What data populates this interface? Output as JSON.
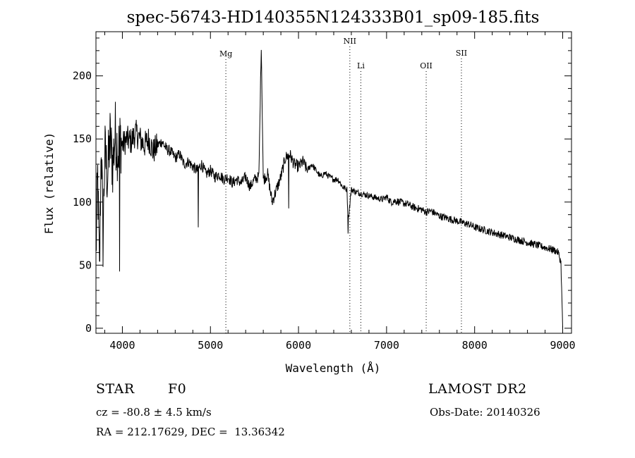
{
  "chart_data": {
    "type": "line",
    "title": "spec-56743-HD140355N124333B01_sp09-185.fits",
    "xlabel": "Wavelength (Å)",
    "ylabel": "Flux (relative)",
    "xlim": [
      3700,
      9100
    ],
    "ylim": [
      -4,
      235
    ],
    "x_ticks": [
      4000,
      5000,
      6000,
      7000,
      8000,
      9000
    ],
    "y_ticks": [
      0,
      50,
      100,
      150,
      200
    ],
    "grid": false,
    "lines": [
      {
        "label": "Mg",
        "wavelength": 5175
      },
      {
        "label": "NII",
        "wavelength": 6583
      },
      {
        "label": "Li",
        "wavelength": 6708
      },
      {
        "label": "OII",
        "wavelength": 7450
      },
      {
        "label": "SII",
        "wavelength": 7850
      }
    ],
    "series": [
      {
        "x": [
          3700,
          3720,
          3740,
          3760,
          3780,
          3800,
          3830,
          3860,
          3890,
          3920,
          3950,
          3980,
          4000,
          4050,
          4100,
          4150,
          4200,
          4250,
          4300,
          4350,
          4400,
          4450,
          4500,
          4550,
          4600,
          4650,
          4700,
          4750,
          4800,
          4850,
          4900,
          4950,
          5000,
          5050,
          5100,
          5150,
          5200,
          5250,
          5300,
          5350,
          5400,
          5450,
          5500,
          5550,
          5577,
          5600,
          5650,
          5700,
          5750,
          5800,
          5850,
          5900,
          5950,
          6000,
          6050,
          6100,
          6150,
          6200,
          6250,
          6300,
          6350,
          6400,
          6450,
          6500,
          6550,
          6563,
          6600,
          6650,
          6700,
          6750,
          6800,
          6850,
          6900,
          6950,
          7000,
          7050,
          7100,
          7150,
          7200,
          7250,
          7300,
          7350,
          7400,
          7450,
          7500,
          7550,
          7600,
          7650,
          7700,
          7750,
          7800,
          7850,
          7900,
          7950,
          8000,
          8050,
          8100,
          8150,
          8200,
          8250,
          8300,
          8350,
          8400,
          8450,
          8500,
          8550,
          8600,
          8650,
          8700,
          8750,
          8800,
          8850,
          8900,
          8950,
          8980,
          9000
        ],
        "y": [
          60,
          120,
          40,
          150,
          70,
          140,
          120,
          150,
          130,
          155,
          140,
          150,
          145,
          150,
          148,
          155,
          150,
          145,
          150,
          140,
          145,
          148,
          142,
          140,
          135,
          138,
          130,
          132,
          128,
          125,
          130,
          122,
          125,
          120,
          122,
          118,
          120,
          115,
          118,
          115,
          120,
          112,
          118,
          120,
          225,
          118,
          122,
          100,
          110,
          120,
          135,
          138,
          130,
          128,
          132,
          125,
          130,
          125,
          120,
          123,
          120,
          118,
          118,
          112,
          110,
          85,
          110,
          108,
          107,
          106,
          105,
          104,
          103,
          102,
          104,
          100,
          101,
          100,
          99,
          98,
          96,
          95,
          94,
          92,
          93,
          91,
          89,
          88,
          87,
          86,
          85,
          84,
          83,
          82,
          80,
          79,
          78,
          77,
          76,
          75,
          74,
          73,
          72,
          71,
          70,
          69,
          68,
          67,
          66,
          65,
          64,
          63,
          62,
          60,
          52,
          0
        ]
      }
    ],
    "absorption": [
      {
        "x": 3970,
        "y": 45
      },
      {
        "x": 4861,
        "y": 80
      },
      {
        "x": 5890,
        "y": 95
      },
      {
        "x": 6563,
        "y": 75
      }
    ]
  },
  "info": {
    "object_type": "STAR",
    "subclass": "F0",
    "survey": "LAMOST DR2",
    "redshift": "cz = -80.8 ± 4.5 km/s",
    "obs_date": "Obs-Date: 20140326",
    "coords": "RA = 212.17629, DEC =  13.36342"
  }
}
